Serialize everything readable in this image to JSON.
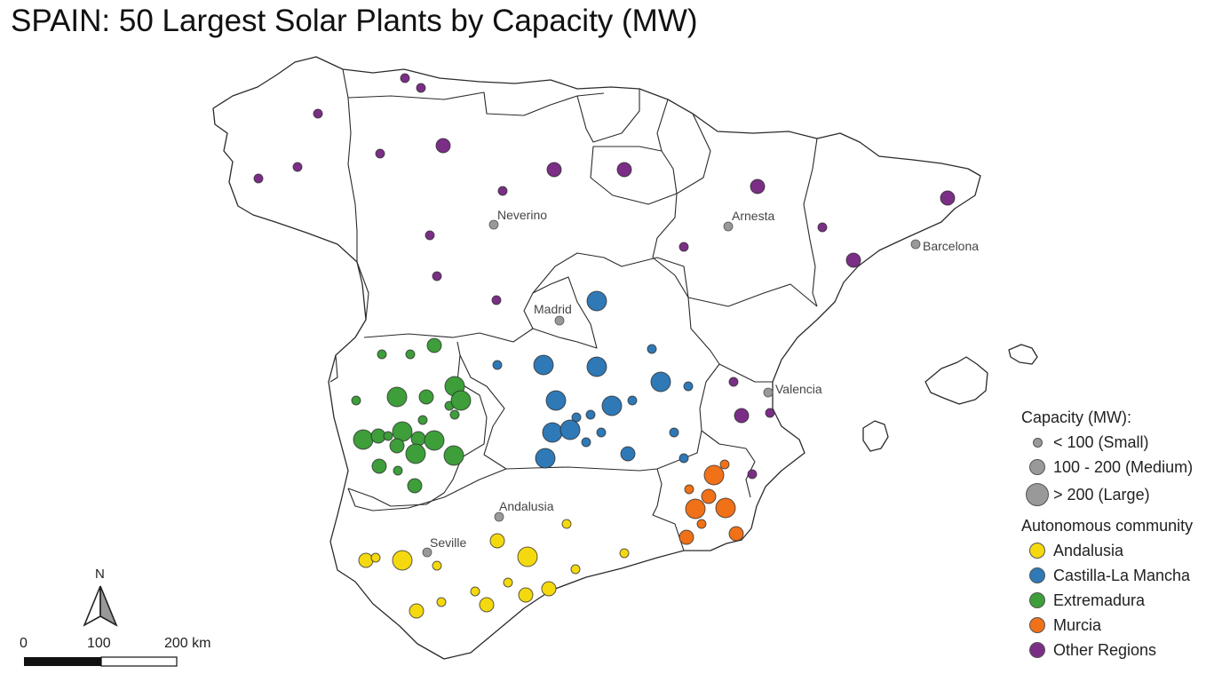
{
  "title": "SPAIN: 50 Largest Solar Plants by Capacity (MW)",
  "colors": {
    "Andalusia": "#f5d90f",
    "Castilla-La Mancha": "#2f79b7",
    "Extremadura": "#3d9e3a",
    "Murcia": "#f07118",
    "Other Regions": "#7b2e86",
    "city": "#999999"
  },
  "cities": [
    {
      "name": "Neverino"
    },
    {
      "name": "Arnesta"
    },
    {
      "name": "Barcelona"
    },
    {
      "name": "Madrid"
    },
    {
      "name": "Valencia"
    },
    {
      "name": "Andalusia"
    },
    {
      "name": "Seville"
    }
  ],
  "legend": {
    "capacity_title": "Capacity (MW):",
    "capacity_items": [
      {
        "label": "< 100 (Small)"
      },
      {
        "label": "100 - 200 (Medium)"
      },
      {
        "label": "> 200 (Large)"
      }
    ],
    "community_title": "Autonomous community",
    "community_items": [
      {
        "label": "Andalusia",
        "key": "Andalusia"
      },
      {
        "label": "Castilla-La Mancha",
        "key": "Castilla-La Mancha"
      },
      {
        "label": "Extremadura",
        "key": "Extremadura"
      },
      {
        "label": "Murcia",
        "key": "Murcia"
      },
      {
        "label": "Other Regions",
        "key": "Other Regions"
      }
    ]
  },
  "north_arrow": "N",
  "scale_bar": {
    "labels": [
      "0",
      "100",
      "200 km"
    ]
  }
}
